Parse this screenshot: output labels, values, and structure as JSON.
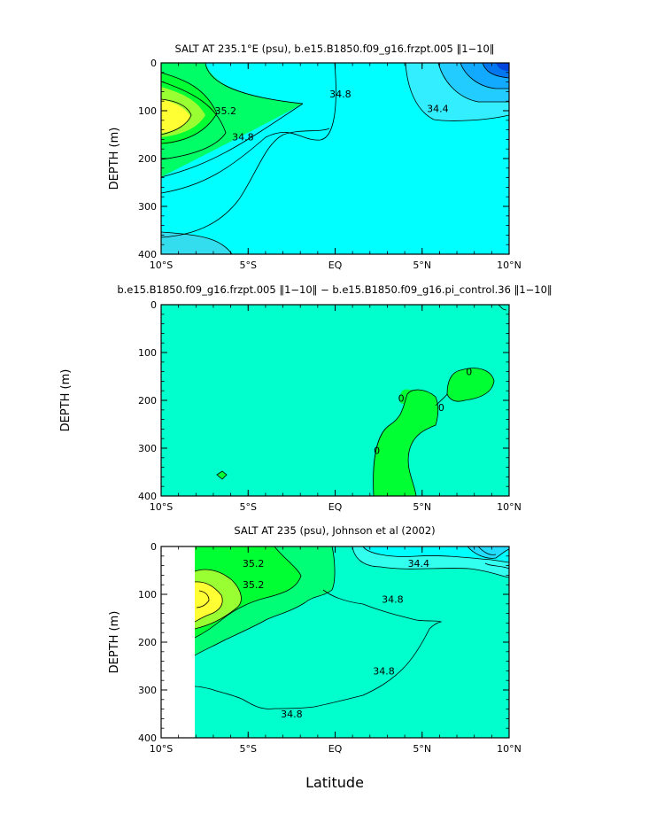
{
  "figure": {
    "xlabel": "Latitude"
  },
  "chart_data": [
    {
      "type": "heatmap",
      "title": "SALT AT 235.1°E (psu), b.e15.B1850.f09_g16.frzpt.005 ‖1−10‖",
      "xlabel": "",
      "ylabel": "DEPTH (m)",
      "xlim": [
        -10,
        10
      ],
      "ylim": [
        400,
        0
      ],
      "x_ticks": [
        "10°S",
        "5°S",
        "EQ",
        "5°N",
        "10°N"
      ],
      "y_ticks": [
        "0",
        "100",
        "200",
        "300",
        "400"
      ],
      "contour_labels": [
        {
          "text": "35.2",
          "lat": -6.3,
          "depth": 100
        },
        {
          "text": "34.8",
          "lat": -5.3,
          "depth": 155
        },
        {
          "text": "34.8",
          "lat": 0.3,
          "depth": 65
        },
        {
          "text": "34.4",
          "lat": 5.9,
          "depth": 95
        }
      ],
      "colors": {
        "high": "#ffff33",
        "mid": "#00ff33",
        "base": "#00ffff",
        "low": "#0044ee"
      }
    },
    {
      "type": "heatmap",
      "title": "b.e15.B1850.f09_g16.frzpt.005 ‖1−10‖ − b.e15.B1850.f09_g16.pi_control.36 ‖1−10‖",
      "xlabel": "",
      "ylabel": "DEPTH (m)",
      "xlim": [
        -10,
        10
      ],
      "ylim": [
        400,
        0
      ],
      "x_ticks": [
        "10°S",
        "5°S",
        "EQ",
        "5°N",
        "10°N"
      ],
      "y_ticks": [
        "0",
        "100",
        "200",
        "300",
        "400"
      ],
      "contour_labels": [
        {
          "text": "0",
          "lat": 2.4,
          "depth": 305
        },
        {
          "text": "0",
          "lat": 3.8,
          "depth": 195
        },
        {
          "text": "0",
          "lat": 6.1,
          "depth": 215
        },
        {
          "text": "0",
          "lat": 7.7,
          "depth": 140
        }
      ],
      "colors": {
        "base": "#00ffcc",
        "positive": "#00ff33"
      }
    },
    {
      "type": "heatmap",
      "title": "SALT AT 235 (psu), Johnson et al (2002)",
      "xlabel": "Latitude",
      "ylabel": "DEPTH (m)",
      "xlim": [
        -10,
        10
      ],
      "ylim": [
        400,
        0
      ],
      "x_ticks": [
        "10°S",
        "5°S",
        "EQ",
        "5°N",
        "10°N"
      ],
      "y_ticks": [
        "0",
        "100",
        "200",
        "300",
        "400"
      ],
      "contour_labels": [
        {
          "text": "35.2",
          "lat": -4.7,
          "depth": 35
        },
        {
          "text": "35.2",
          "lat": -4.7,
          "depth": 80
        },
        {
          "text": "34.4",
          "lat": 4.8,
          "depth": 35
        },
        {
          "text": "34.8",
          "lat": 3.3,
          "depth": 110
        },
        {
          "text": "34.8",
          "lat": 2.8,
          "depth": 260
        },
        {
          "text": "34.8",
          "lat": -2.5,
          "depth": 350
        }
      ],
      "colors": {
        "high": "#ffff33",
        "mid": "#00ff33",
        "base": "#00ffcc",
        "low": "#00ffff"
      }
    }
  ]
}
